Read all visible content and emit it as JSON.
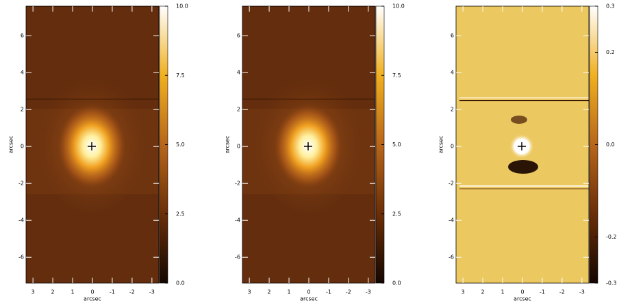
{
  "chart_data": [
    {
      "type": "image",
      "xlabel": "arcsec",
      "ylabel": "arcsec",
      "xlim": [
        3.35,
        -3.35
      ],
      "ylim": [
        -7.4,
        7.6
      ],
      "xticks": [
        3,
        2,
        1,
        0,
        -1,
        -2,
        -3
      ],
      "yticks": [
        -6,
        -4,
        -2,
        0,
        2,
        4,
        6
      ],
      "colorbar": {
        "clim": [
          0,
          10
        ],
        "ticks": [
          {
            "value": 0,
            "label": "0.0"
          },
          {
            "value": 2.5,
            "label": "2.5"
          },
          {
            "value": 5,
            "label": "5.0"
          },
          {
            "value": 7.5,
            "label": "7.5"
          },
          {
            "value": 10,
            "label": "10.0"
          }
        ],
        "colormap": [
          "#140600",
          "#6a2e08",
          "#b8661a",
          "#f0b020",
          "#ffffff"
        ]
      }
    },
    {
      "type": "image",
      "xlabel": "arcsec",
      "ylabel": "arcsec",
      "xlim": [
        3.35,
        -3.35
      ],
      "ylim": [
        -7.4,
        7.6
      ],
      "xticks": [
        3,
        2,
        1,
        0,
        -1,
        -2,
        -3
      ],
      "yticks": [
        -6,
        -4,
        -2,
        0,
        2,
        4,
        6
      ],
      "colorbar": {
        "clim": [
          0,
          10
        ],
        "ticks": [
          {
            "value": 0,
            "label": "0.0"
          },
          {
            "value": 2.5,
            "label": "2.5"
          },
          {
            "value": 5,
            "label": "5.0"
          },
          {
            "value": 7.5,
            "label": "7.5"
          },
          {
            "value": 10,
            "label": "10.0"
          }
        ],
        "colormap": [
          "#140600",
          "#6a2e08",
          "#b8661a",
          "#f0b020",
          "#ffffff"
        ]
      }
    },
    {
      "type": "image",
      "xlabel": "arcsec",
      "ylabel": "arcsec",
      "xlim": [
        3.35,
        -3.35
      ],
      "ylim": [
        -7.4,
        7.6
      ],
      "xticks": [
        3,
        2,
        1,
        0,
        -1,
        -2,
        -3
      ],
      "yticks": [
        -6,
        -4,
        -2,
        0,
        2,
        4,
        6
      ],
      "colorbar": {
        "clim": [
          -0.3,
          0.3
        ],
        "ticks": [
          -0.3,
          -0.2,
          {
            "value": 0,
            "label": "0.0"
          },
          0.2,
          0.3
        ],
        "colormap": [
          "#140600",
          "#6a2e08",
          "#b8661a",
          "#f0b020",
          "#ffffff"
        ]
      }
    }
  ]
}
